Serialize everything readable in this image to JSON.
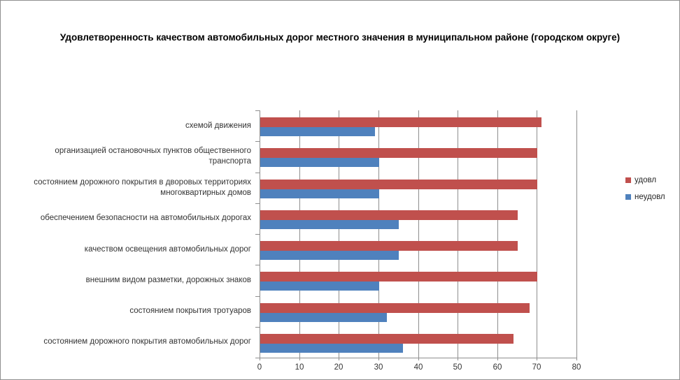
{
  "chart_data": {
    "type": "bar",
    "orientation": "horizontal",
    "title": "Удовлетворенность качеством автомобильных дорог местного значения в муниципальном районе (городском округе)",
    "categories": [
      "схемой движения",
      "организацией остановочных пунктов общественного транспорта",
      "состоянием дорожного покрытия в дворовых территориях многоквартирных домов",
      "обеспечением  безопасности на автомобильных дорогах",
      "качеством освещения  автомобильных дорог",
      "внешним видом разметки, дорожных знаков",
      "состоянием покрытия тротуаров",
      "состоянием дорожного покрытия автомобильных дорог"
    ],
    "series": [
      {
        "key": "satisfied",
        "name": "удовл",
        "color": "#C0504D",
        "values": [
          71,
          70,
          70,
          65,
          65,
          70,
          68,
          64
        ]
      },
      {
        "key": "dissatisfied",
        "name": "неудовл",
        "color": "#4F81BD",
        "values": [
          29,
          30,
          30,
          35,
          35,
          30,
          32,
          36
        ]
      }
    ],
    "xlabel": "",
    "ylabel": "",
    "xlim": [
      0,
      80
    ],
    "x_ticks": [
      0,
      10,
      20,
      30,
      40,
      50,
      60,
      70,
      80
    ],
    "grid": "vertical",
    "legend_position": "right"
  },
  "colors": {
    "grid": "#8e8e8e",
    "axis": "#8e8e8e",
    "text": "#333333",
    "title": "#000000",
    "background": "#ffffff",
    "frame_border": "#8f8f8f"
  }
}
